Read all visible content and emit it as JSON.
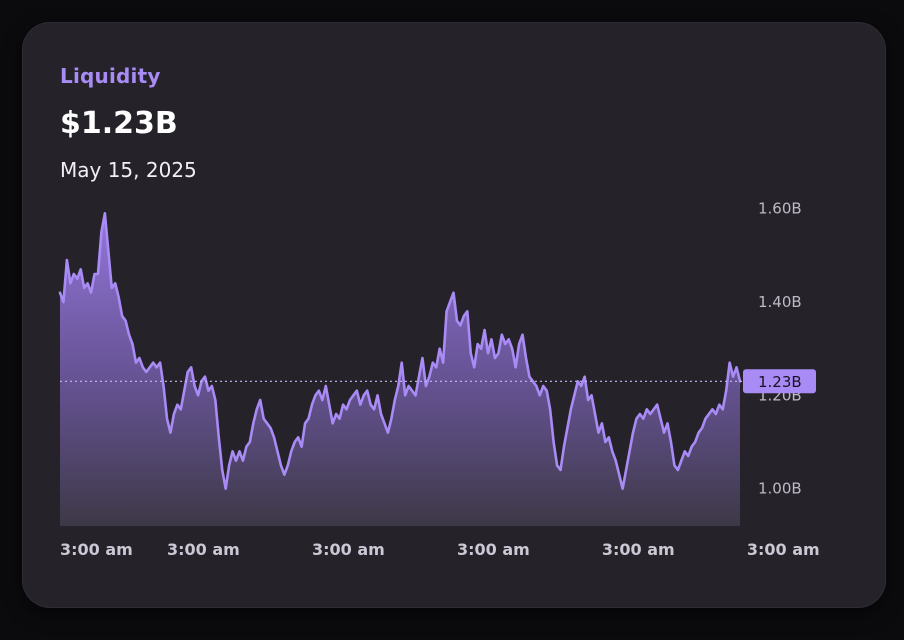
{
  "card": {
    "title": "Liquidity",
    "value": "$1.23B",
    "date": "May 15, 2025"
  },
  "colors": {
    "accent": "#a98bf5",
    "line": "#a98bf5",
    "card_bg": "#252329",
    "page_bg": "#0b0a0d"
  },
  "chart_data": {
    "type": "area",
    "title": "Liquidity",
    "current_value_label": "1.23B",
    "reference_value": 1.23,
    "ylim": [
      0.92,
      1.64
    ],
    "y_ticks": [
      {
        "value": 1.6,
        "label": "1.60B"
      },
      {
        "value": 1.4,
        "label": "1.40B"
      },
      {
        "value": 1.2,
        "label": "1.20B"
      },
      {
        "value": 1.0,
        "label": "1.00B"
      }
    ],
    "x_ticks": [
      {
        "index": 0,
        "label": "3:00 am"
      },
      {
        "index": 31,
        "label": "3:00 am"
      },
      {
        "index": 73,
        "label": "3:00 am"
      },
      {
        "index": 115,
        "label": "3:00 am"
      },
      {
        "index": 157,
        "label": "3:00 am"
      },
      {
        "index": 199,
        "label": "3:00 am"
      }
    ],
    "grid": false,
    "legend": "none",
    "series": [
      {
        "values": [
          1.42,
          1.4,
          1.49,
          1.44,
          1.46,
          1.45,
          1.47,
          1.43,
          1.44,
          1.42,
          1.46,
          1.46,
          1.55,
          1.59,
          1.51,
          1.43,
          1.44,
          1.41,
          1.37,
          1.36,
          1.33,
          1.31,
          1.27,
          1.28,
          1.26,
          1.25,
          1.26,
          1.27,
          1.26,
          1.27,
          1.22,
          1.15,
          1.12,
          1.16,
          1.18,
          1.17,
          1.21,
          1.25,
          1.26,
          1.22,
          1.2,
          1.23,
          1.24,
          1.21,
          1.22,
          1.19,
          1.11,
          1.04,
          1.0,
          1.05,
          1.08,
          1.06,
          1.08,
          1.06,
          1.09,
          1.1,
          1.14,
          1.17,
          1.19,
          1.15,
          1.14,
          1.13,
          1.11,
          1.08,
          1.05,
          1.03,
          1.05,
          1.08,
          1.1,
          1.11,
          1.09,
          1.14,
          1.15,
          1.18,
          1.2,
          1.21,
          1.19,
          1.22,
          1.18,
          1.14,
          1.16,
          1.15,
          1.18,
          1.17,
          1.19,
          1.2,
          1.21,
          1.18,
          1.2,
          1.21,
          1.18,
          1.17,
          1.2,
          1.16,
          1.14,
          1.12,
          1.15,
          1.19,
          1.22,
          1.27,
          1.2,
          1.22,
          1.21,
          1.2,
          1.24,
          1.28,
          1.22,
          1.24,
          1.27,
          1.26,
          1.3,
          1.27,
          1.38,
          1.4,
          1.42,
          1.36,
          1.35,
          1.37,
          1.38,
          1.29,
          1.26,
          1.31,
          1.3,
          1.34,
          1.29,
          1.32,
          1.28,
          1.29,
          1.33,
          1.31,
          1.32,
          1.3,
          1.26,
          1.31,
          1.33,
          1.28,
          1.24,
          1.23,
          1.22,
          1.2,
          1.22,
          1.21,
          1.17,
          1.1,
          1.05,
          1.04,
          1.09,
          1.13,
          1.17,
          1.2,
          1.23,
          1.22,
          1.24,
          1.19,
          1.2,
          1.16,
          1.12,
          1.14,
          1.1,
          1.11,
          1.08,
          1.06,
          1.03,
          1.0,
          1.04,
          1.08,
          1.12,
          1.15,
          1.16,
          1.15,
          1.17,
          1.16,
          1.17,
          1.18,
          1.15,
          1.12,
          1.14,
          1.1,
          1.05,
          1.04,
          1.06,
          1.08,
          1.07,
          1.09,
          1.1,
          1.12,
          1.13,
          1.15,
          1.16,
          1.17,
          1.16,
          1.18,
          1.17,
          1.21,
          1.27,
          1.24,
          1.26,
          1.23
        ]
      }
    ]
  }
}
